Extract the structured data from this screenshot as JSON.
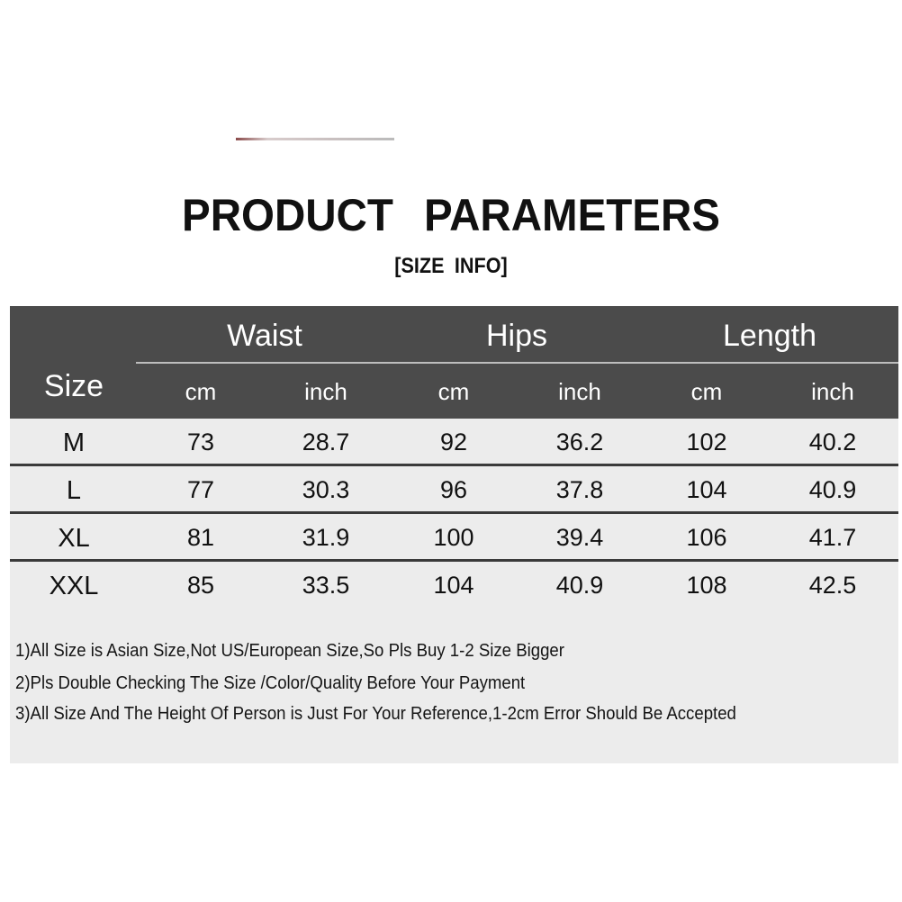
{
  "title": "PRODUCT PARAMETERS",
  "subtitle": "[SIZE INFO]",
  "colors": {
    "header_bg": "#4b4b4b",
    "row_bg": "#ececec",
    "separator": "#3a3a3a"
  },
  "table": {
    "size_header": "Size",
    "groups": [
      "Waist",
      "Hips",
      "Length"
    ],
    "units": [
      "cm",
      "inch",
      "cm",
      "inch",
      "cm",
      "inch"
    ],
    "rows": [
      [
        "M",
        "73",
        "28.7",
        "92",
        "36.2",
        "102",
        "40.2"
      ],
      [
        "L",
        "77",
        "30.3",
        "96",
        "37.8",
        "104",
        "40.9"
      ],
      [
        "XL",
        "81",
        "31.9",
        "100",
        "39.4",
        "106",
        "41.7"
      ],
      [
        "XXL",
        "85",
        "33.5",
        "104",
        "40.9",
        "108",
        "42.5"
      ]
    ]
  },
  "notes": [
    "1)All Size is Asian Size,Not US/European Size,So Pls Buy 1-2 Size Bigger",
    "2)Pls Double Checking The Size /Color/Quality Before Your Payment",
    "3)All Size And The Height Of Person is Just For Your Reference,1-2cm Error Should Be Accepted"
  ]
}
